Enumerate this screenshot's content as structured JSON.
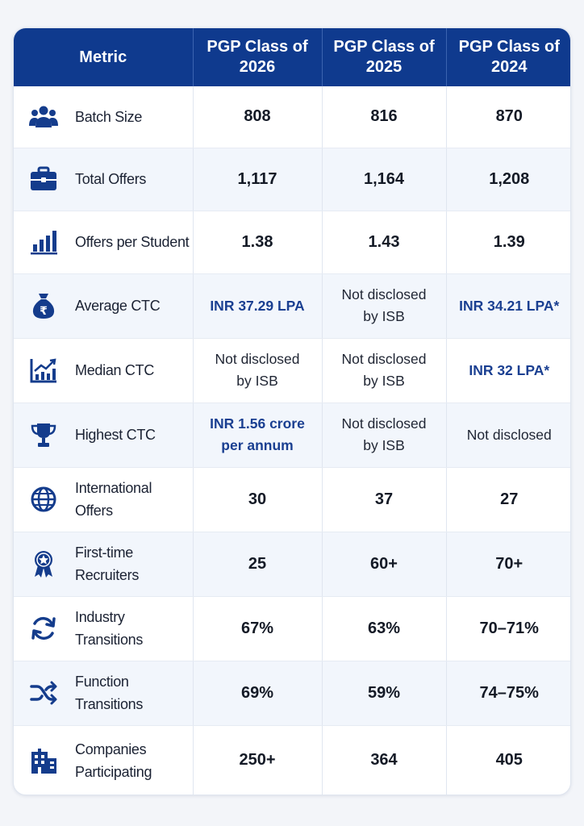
{
  "table": {
    "headers": [
      "Metric",
      "PGP Class of 2026",
      "PGP Class of 2025",
      "PGP Class of 2024"
    ],
    "rows": [
      {
        "metric": "Batch Size",
        "icon": "people-group-icon",
        "values": [
          "808",
          "816",
          "870"
        ]
      },
      {
        "metric": "Total Offers",
        "icon": "briefcase-icon",
        "values": [
          "1,117",
          "1,164",
          "1,208"
        ]
      },
      {
        "metric": "Offers per Student",
        "icon": "bar-chart-icon",
        "values": [
          "1.38",
          "1.43",
          "1.39"
        ]
      },
      {
        "metric": "Average CTC",
        "icon": "rupee-money-bag-icon",
        "values": [
          "INR 37.29 LPA",
          "Not disclosed by ISB",
          "INR 34.21 LPA*"
        ]
      },
      {
        "metric": "Median CTC",
        "icon": "trend-chart-icon",
        "values": [
          "Not disclosed by ISB",
          "Not disclosed by ISB",
          "INR 32 LPA*"
        ]
      },
      {
        "metric": "Highest CTC",
        "icon": "trophy-icon",
        "values": [
          "INR 1.56 crore per annum",
          "Not disclosed by ISB",
          "Not disclosed"
        ]
      },
      {
        "metric": "International Offers",
        "icon": "globe-icon",
        "values": [
          "30",
          "37",
          "27"
        ]
      },
      {
        "metric": "First-time Recruiters",
        "icon": "award-badge-icon",
        "values": [
          "25",
          "60+",
          "70+"
        ]
      },
      {
        "metric": "Industry Transitions",
        "icon": "refresh-cycle-icon",
        "values": [
          "67%",
          "63%",
          "70–71%"
        ]
      },
      {
        "metric": "Function Transitions",
        "icon": "shuffle-icon",
        "values": [
          "69%",
          "59%",
          "74–75%"
        ]
      },
      {
        "metric": "Companies Participating",
        "icon": "office-building-icon",
        "values": [
          "250+",
          "364",
          "405"
        ]
      }
    ]
  },
  "colors": {
    "header_bg": "#0f3a8e",
    "icon": "#143c8c",
    "highlight_text": "#1a3f91"
  }
}
